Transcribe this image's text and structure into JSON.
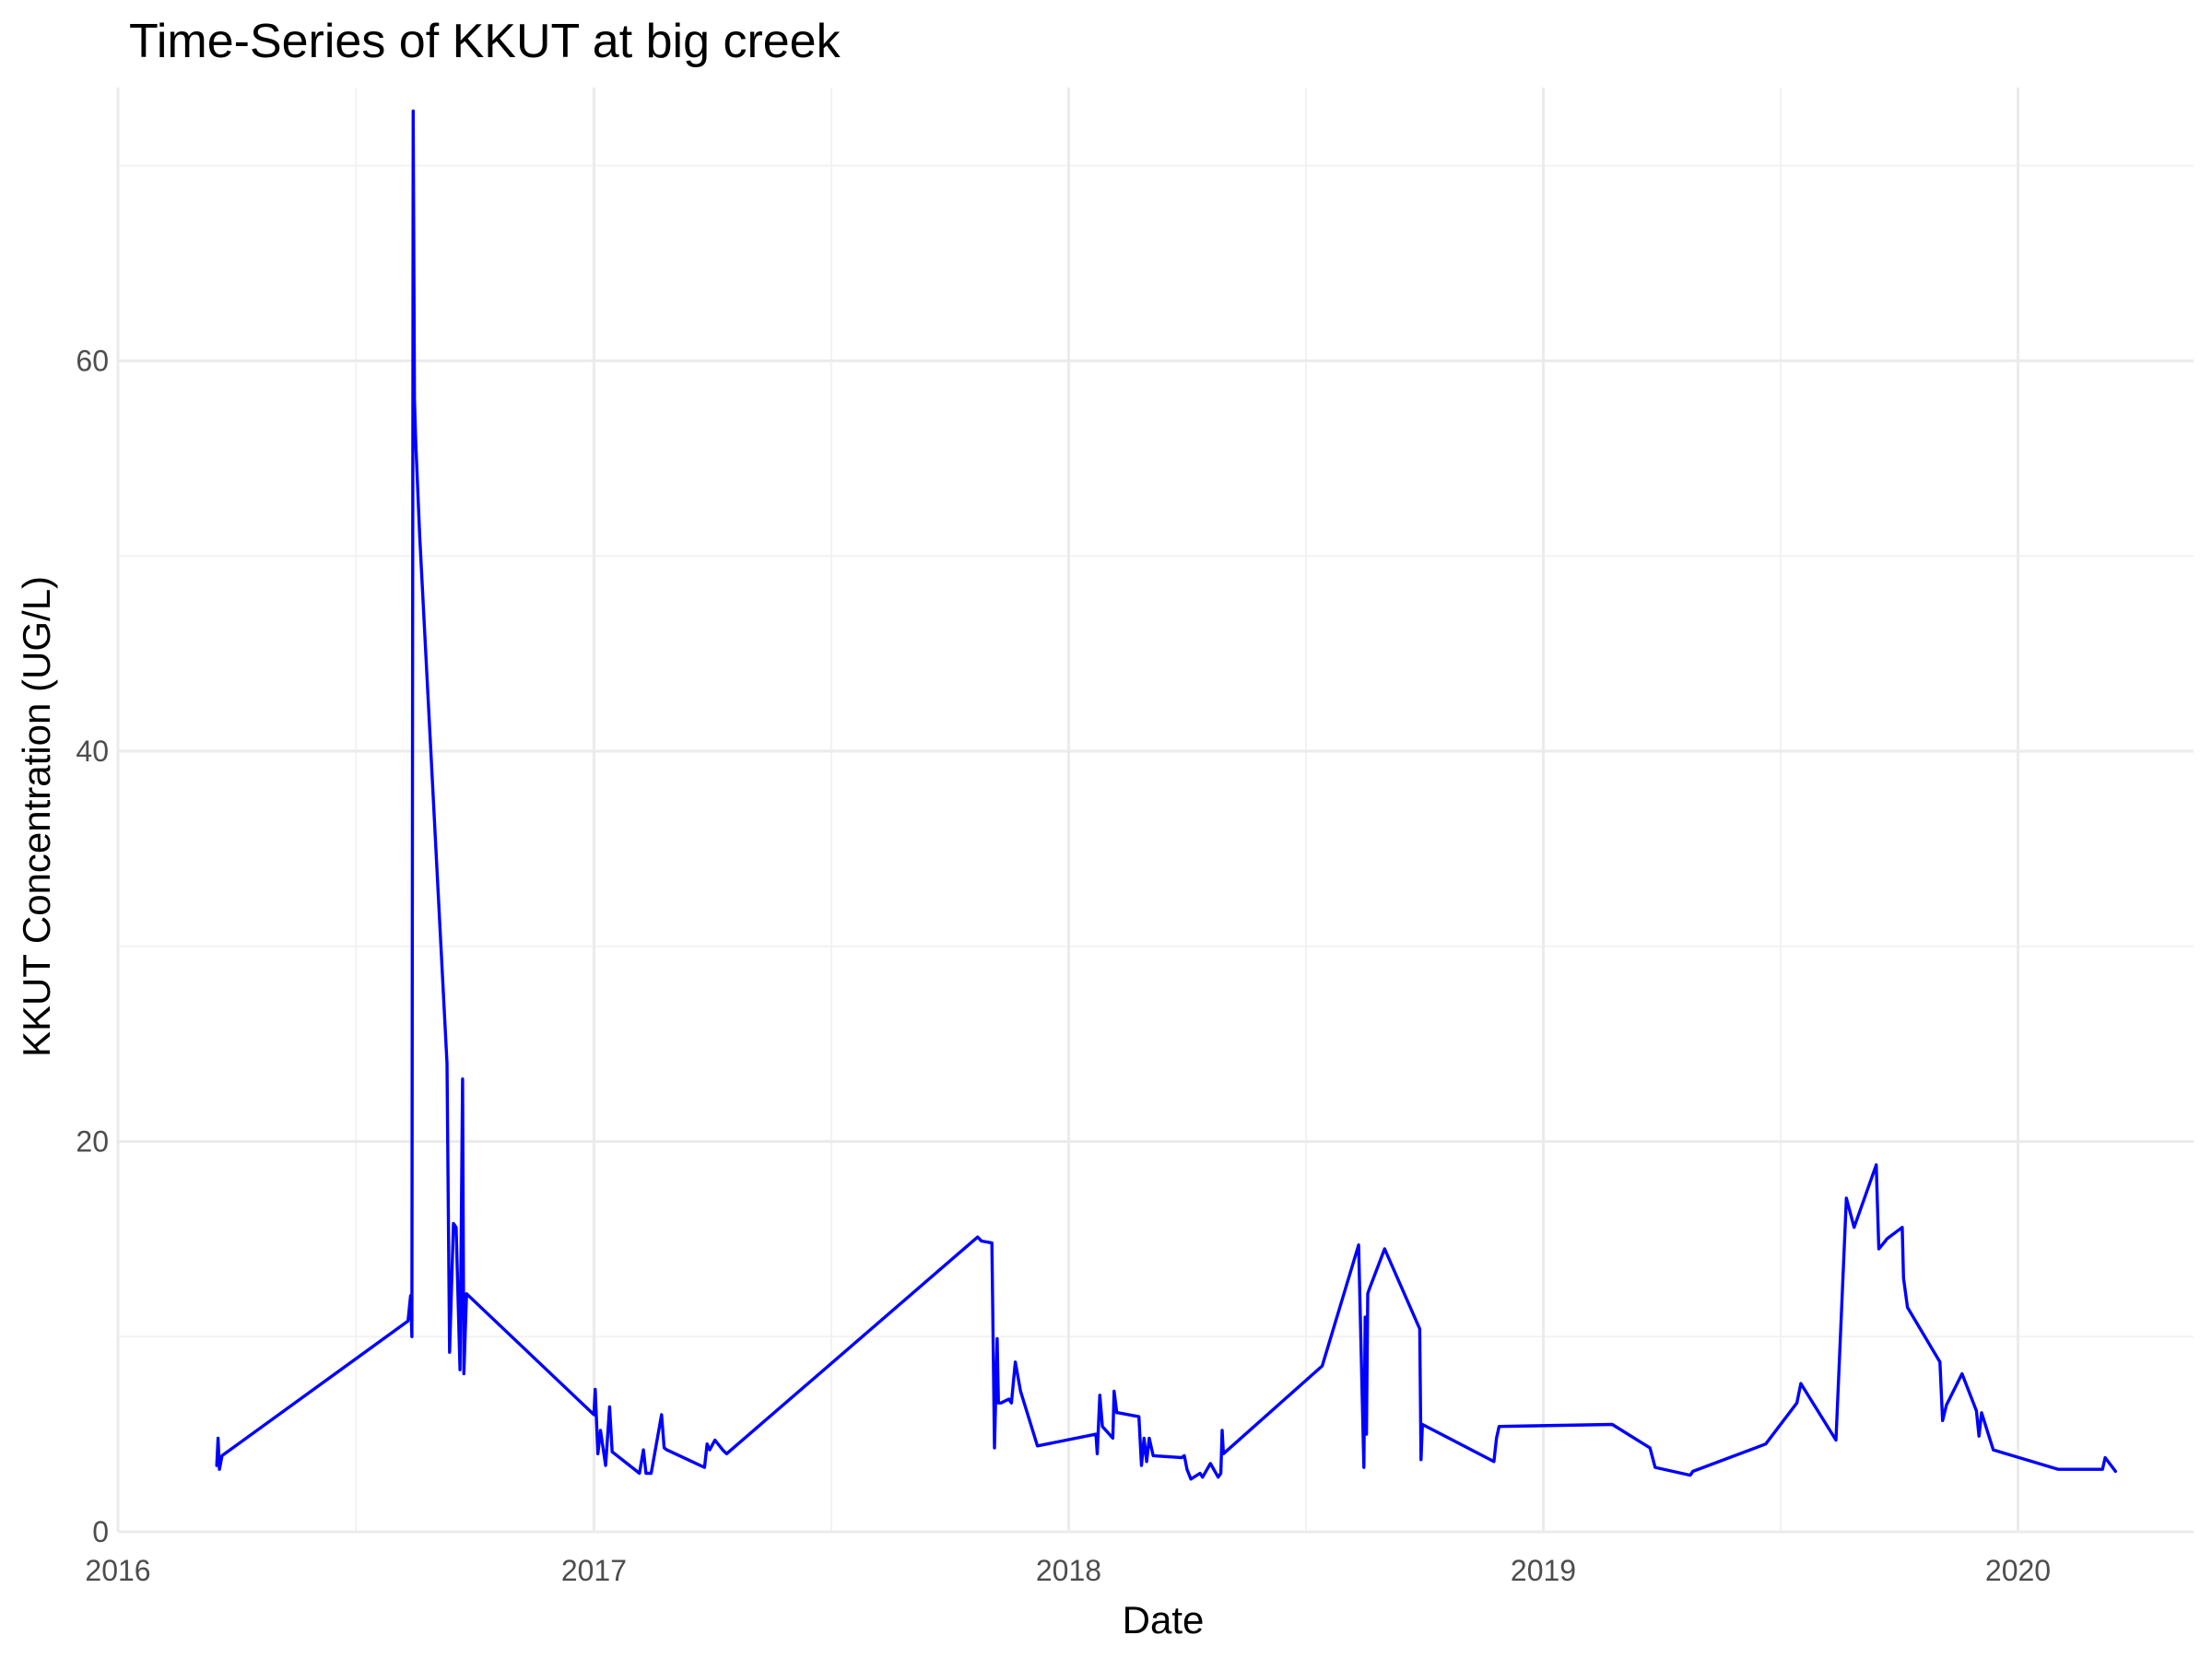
{
  "chart_data": {
    "type": "line",
    "title": "Time-Series of KKUT at big creek",
    "xlabel": "Date",
    "ylabel": "KKUT Concentration (UG/L)",
    "xlim": [
      "2016-01-01",
      "2020-05-15"
    ],
    "ylim": [
      0,
      74
    ],
    "x_ticks": [
      "2016-01-01",
      "2017-01-01",
      "2018-01-01",
      "2019-01-01",
      "2020-01-01"
    ],
    "x_tick_labels": [
      "2016",
      "2017",
      "2018",
      "2019",
      "2020"
    ],
    "y_ticks": [
      0,
      20,
      40,
      60
    ],
    "y_tick_labels": [
      "0",
      "20",
      "40",
      "60"
    ],
    "grid": true,
    "legend": "none",
    "colors": {
      "line": "#0000FF",
      "grid_major": "#EBEBEB",
      "grid_minor": "#F2F2F2"
    },
    "series": [
      {
        "x": [
          "2016-03-17",
          "2016-03-18",
          "2016-03-19",
          "2016-03-21",
          "2016-08-11",
          "2016-08-13",
          "2016-08-14",
          "2016-08-15",
          "2016-08-16",
          "2016-08-17",
          "2016-08-20",
          "2016-09-10",
          "2016-09-12",
          "2016-09-15",
          "2016-09-17",
          "2016-09-20",
          "2016-09-22",
          "2016-09-23",
          "2016-09-25",
          "2017-01-01",
          "2017-01-02",
          "2017-01-04",
          "2017-01-06",
          "2017-01-10",
          "2017-01-13",
          "2017-01-15",
          "2017-02-05",
          "2017-02-08",
          "2017-02-10",
          "2017-02-14",
          "2017-02-22",
          "2017-02-24",
          "2017-02-26",
          "2017-03-27",
          "2017-03-29",
          "2017-03-31",
          "2017-04-04",
          "2017-04-10",
          "2017-04-13",
          "2017-10-23",
          "2017-10-26",
          "2017-11-03",
          "2017-11-05",
          "2017-11-07",
          "2017-11-08",
          "2017-11-10",
          "2017-11-16",
          "2017-11-18",
          "2017-11-21",
          "2017-11-25",
          "2017-12-08",
          "2018-01-22",
          "2018-01-23",
          "2018-01-25",
          "2018-01-27",
          "2018-02-04",
          "2018-02-05",
          "2018-02-07",
          "2018-02-08",
          "2018-02-24",
          "2018-02-26",
          "2018-02-28",
          "2018-03-02",
          "2018-03-04",
          "2018-03-07",
          "2018-03-29",
          "2018-03-31",
          "2018-04-02",
          "2018-04-05",
          "2018-04-12",
          "2018-04-14",
          "2018-04-20",
          "2018-04-26",
          "2018-04-28",
          "2018-04-29",
          "2018-04-30",
          "2018-07-15",
          "2018-08-12",
          "2018-08-16",
          "2018-08-17",
          "2018-08-18",
          "2018-08-19",
          "2018-08-20",
          "2018-09-01",
          "2018-09-28",
          "2018-09-29",
          "2018-09-30",
          "2018-11-24",
          "2018-11-26",
          "2018-11-28",
          "2019-02-23",
          "2019-03-24",
          "2019-03-28",
          "2019-04-24",
          "2019-04-26",
          "2019-06-21",
          "2019-07-15",
          "2019-07-18",
          "2019-08-14",
          "2019-08-22",
          "2019-08-28",
          "2019-09-14",
          "2019-09-16",
          "2019-09-21",
          "2019-09-22",
          "2019-10-04",
          "2019-10-05",
          "2019-10-08",
          "2019-11-02",
          "2019-11-04",
          "2019-11-07",
          "2019-11-19",
          "2019-11-30",
          "2019-12-02",
          "2019-12-04",
          "2019-12-13",
          "2020-02-01",
          "2020-03-06",
          "2020-03-08",
          "2020-03-16"
        ],
        "y": [
          3.4,
          4.8,
          3.2,
          3.9,
          10.8,
          12.1,
          10.0,
          72.8,
          58.0,
          55.8,
          51.0,
          24.0,
          9.2,
          15.8,
          15.6,
          8.3,
          23.2,
          8.1,
          12.2,
          6.0,
          7.3,
          4.0,
          5.2,
          3.4,
          6.4,
          4.1,
          3.0,
          4.2,
          3.0,
          3.0,
          6.0,
          4.3,
          4.2,
          3.3,
          4.5,
          4.2,
          4.7,
          4.2,
          4.0,
          15.1,
          14.9,
          14.8,
          4.3,
          9.9,
          6.6,
          6.6,
          6.8,
          6.6,
          8.7,
          7.2,
          4.4,
          5.0,
          4.0,
          7.0,
          5.4,
          4.8,
          7.2,
          6.1,
          6.1,
          5.9,
          3.4,
          4.8,
          3.6,
          4.8,
          3.9,
          3.8,
          3.9,
          3.2,
          2.7,
          3.0,
          2.8,
          3.5,
          2.8,
          3.0,
          5.2,
          4.0,
          8.5,
          14.7,
          3.3,
          11.0,
          5.0,
          12.2,
          12.4,
          14.5,
          10.4,
          3.7,
          5.5,
          3.6,
          4.8,
          5.4,
          5.5,
          4.3,
          3.3,
          2.9,
          3.1,
          4.5,
          6.6,
          7.6,
          4.7,
          17.1,
          15.6,
          18.8,
          14.5,
          14.9,
          15.0,
          15.6,
          13.0,
          11.5,
          8.7,
          5.7,
          6.5,
          8.1,
          6.2,
          4.9,
          6.1,
          4.2,
          3.2,
          3.2,
          3.8,
          3.1
        ]
      }
    ]
  }
}
